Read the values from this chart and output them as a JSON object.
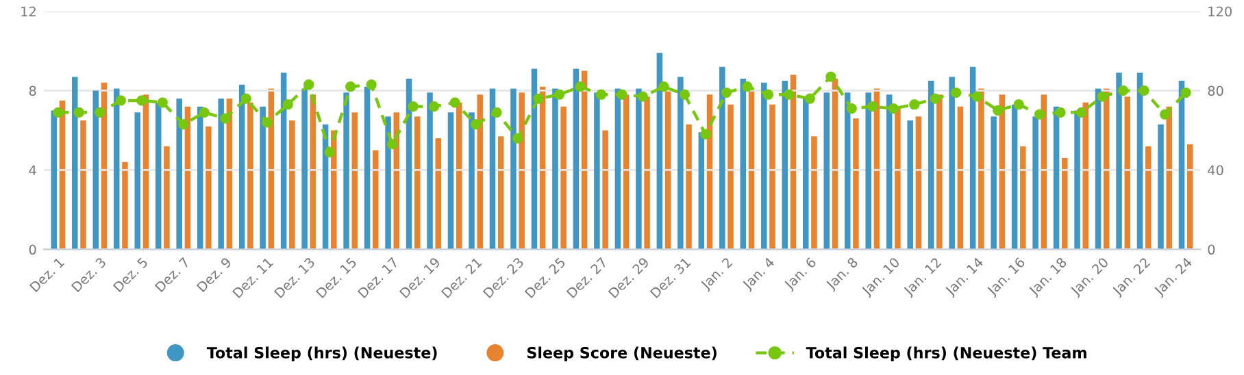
{
  "chart_data": {
    "type": "bar",
    "categories": [
      "Dez. 1",
      null,
      "Dez. 3",
      null,
      "Dez. 5",
      null,
      "Dez. 7",
      null,
      "Dez. 9",
      null,
      "Dez. 11",
      null,
      "Dez. 13",
      null,
      "Dez. 15",
      null,
      "Dez. 17",
      null,
      "Dez. 19",
      null,
      "Dez. 21",
      null,
      "Dez. 23",
      null,
      "Dez. 25",
      null,
      "Dez. 27",
      null,
      "Dez. 29",
      null,
      "Dez. 31",
      null,
      "Jan. 2",
      null,
      "Jan. 4",
      null,
      "Jan. 6",
      null,
      "Jan. 8",
      null,
      "Jan. 10",
      null,
      "Jan. 12",
      null,
      "Jan. 14",
      null,
      "Jan. 16",
      null,
      "Jan. 18",
      null,
      "Jan. 20",
      null,
      "Jan. 22",
      null,
      "Jan. 24"
    ],
    "series": [
      {
        "name": "Total Sleep (hrs) (Neueste)",
        "color": "#4197c3",
        "values": [
          7.0,
          8.7,
          8.0,
          8.1,
          6.9,
          7.4,
          7.6,
          7.2,
          7.6,
          8.3,
          7.2,
          8.9,
          8.1,
          6.3,
          7.9,
          8.2,
          6.7,
          8.6,
          7.9,
          6.9,
          6.9,
          8.1,
          8.1,
          9.1,
          8.1,
          9.1,
          7.9,
          8.1,
          8.1,
          9.9,
          8.7,
          5.9,
          9.2,
          8.6,
          8.4,
          8.5,
          7.6,
          7.9,
          7.9,
          7.9,
          7.8,
          6.5,
          8.5,
          8.7,
          9.2,
          6.7,
          7.3,
          6.7,
          7.2,
          7.0,
          8.1,
          8.9,
          8.9,
          6.3,
          8.5
        ]
      },
      {
        "name": "Sleep Score (Neueste)",
        "color": "#e8832f",
        "axis": "y2",
        "values": [
          75,
          65,
          84,
          44,
          78,
          52,
          72,
          62,
          76,
          74,
          81,
          65,
          78,
          60,
          69,
          50,
          69,
          67,
          56,
          74,
          78,
          57,
          79,
          82,
          72,
          90,
          60,
          78,
          77,
          81,
          63,
          78,
          73,
          80,
          73,
          88,
          57,
          86,
          66,
          81,
          71,
          67,
          78,
          72,
          81,
          78,
          52,
          78,
          46,
          74,
          81,
          77,
          52,
          72,
          53
        ]
      },
      {
        "name": "Total Sleep (hrs) (Neueste) Team",
        "color": "#77c711",
        "type": "line",
        "values": [
          6.9,
          6.9,
          6.9,
          7.5,
          7.5,
          7.4,
          6.3,
          6.9,
          6.6,
          7.6,
          6.4,
          7.3,
          8.3,
          4.9,
          8.2,
          8.3,
          5.3,
          7.2,
          7.2,
          7.4,
          6.3,
          6.9,
          5.6,
          7.6,
          7.8,
          8.2,
          7.8,
          7.8,
          7.7,
          8.2,
          7.8,
          5.8,
          7.9,
          8.2,
          7.8,
          7.8,
          7.6,
          8.7,
          7.1,
          7.2,
          7.1,
          7.3,
          7.6,
          7.9,
          7.7,
          7.0,
          7.3,
          6.8,
          6.9,
          6.9,
          7.7,
          8.0,
          8.0,
          6.8,
          7.9
        ]
      }
    ],
    "ylim": [
      0,
      12
    ],
    "yticks": [
      0,
      4,
      8,
      12
    ],
    "y2lim": [
      0,
      120
    ],
    "y2ticks": [
      0,
      40,
      80,
      120
    ],
    "grid": "y",
    "legend": "bottom",
    "marker": "circle",
    "line_style": "dashed"
  }
}
